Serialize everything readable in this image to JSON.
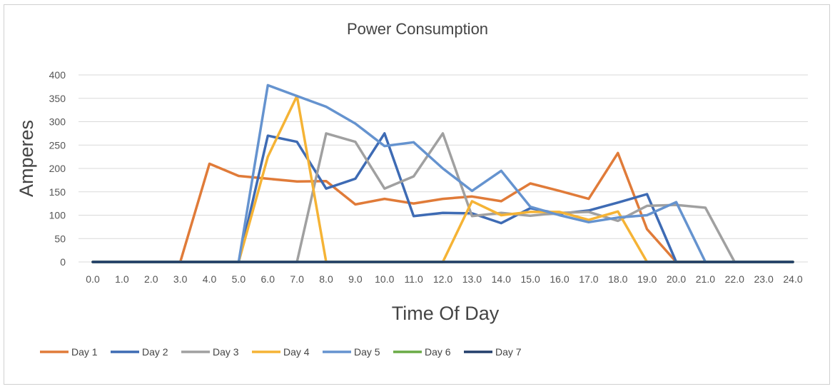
{
  "chart_data": {
    "type": "line",
    "title": "Power Consumption",
    "xlabel": "Time Of Day",
    "ylabel": "Amperes",
    "ylim": [
      0,
      400
    ],
    "yticks": [
      0,
      50,
      100,
      150,
      200,
      250,
      300,
      350,
      400
    ],
    "x": [
      "0.0",
      "1.0",
      "2.0",
      "3.0",
      "4.0",
      "5.0",
      "6.0",
      "7.0",
      "8.0",
      "9.0",
      "10.0",
      "11.0",
      "12.0",
      "13.0",
      "14.0",
      "15.0",
      "16.0",
      "17.0",
      "18.0",
      "19.0",
      "20.0",
      "21.0",
      "22.0",
      "23.0",
      "24.0"
    ],
    "grid": true,
    "legend_position": "bottom-left",
    "series": [
      {
        "name": "Day 1",
        "color": "#e07b39",
        "values": [
          0,
          0,
          0,
          0,
          210,
          184,
          178,
          172,
          173,
          123,
          135,
          125,
          135,
          140,
          130,
          168,
          152,
          135,
          233,
          70,
          0,
          0,
          0,
          0,
          0
        ]
      },
      {
        "name": "Day 2",
        "color": "#3e6bb4",
        "values": [
          0,
          0,
          0,
          0,
          0,
          0,
          270,
          257,
          157,
          178,
          275,
          98,
          105,
          104,
          83,
          115,
          103,
          110,
          127,
          145,
          0,
          0,
          0,
          0,
          0
        ]
      },
      {
        "name": "Day 3",
        "color": "#a0a0a0",
        "values": [
          0,
          0,
          0,
          0,
          0,
          0,
          0,
          0,
          275,
          257,
          157,
          183,
          275,
          98,
          105,
          99,
          105,
          107,
          88,
          120,
          122,
          116,
          0,
          0,
          0
        ]
      },
      {
        "name": "Day 4",
        "color": "#f5b335",
        "values": [
          0,
          0,
          0,
          0,
          0,
          0,
          225,
          355,
          0,
          0,
          0,
          0,
          0,
          130,
          100,
          107,
          107,
          90,
          108,
          0,
          0,
          0,
          0,
          0,
          0
        ]
      },
      {
        "name": "Day 5",
        "color": "#6593cf",
        "values": [
          0,
          0,
          0,
          0,
          0,
          0,
          378,
          355,
          332,
          296,
          248,
          256,
          200,
          152,
          195,
          118,
          100,
          85,
          95,
          100,
          128,
          0,
          0,
          0,
          0
        ]
      },
      {
        "name": "Day 6",
        "color": "#6aab46",
        "values": [
          0,
          0,
          0,
          0,
          0,
          0,
          0,
          0,
          0,
          0,
          0,
          0,
          0,
          0,
          0,
          0,
          0,
          0,
          0,
          0,
          0,
          0,
          0,
          0,
          0
        ]
      },
      {
        "name": "Day 7",
        "color": "#233f6b",
        "values": [
          0,
          0,
          0,
          0,
          0,
          0,
          0,
          0,
          0,
          0,
          0,
          0,
          0,
          0,
          0,
          0,
          0,
          0,
          0,
          0,
          0,
          0,
          0,
          0,
          0
        ]
      }
    ]
  }
}
